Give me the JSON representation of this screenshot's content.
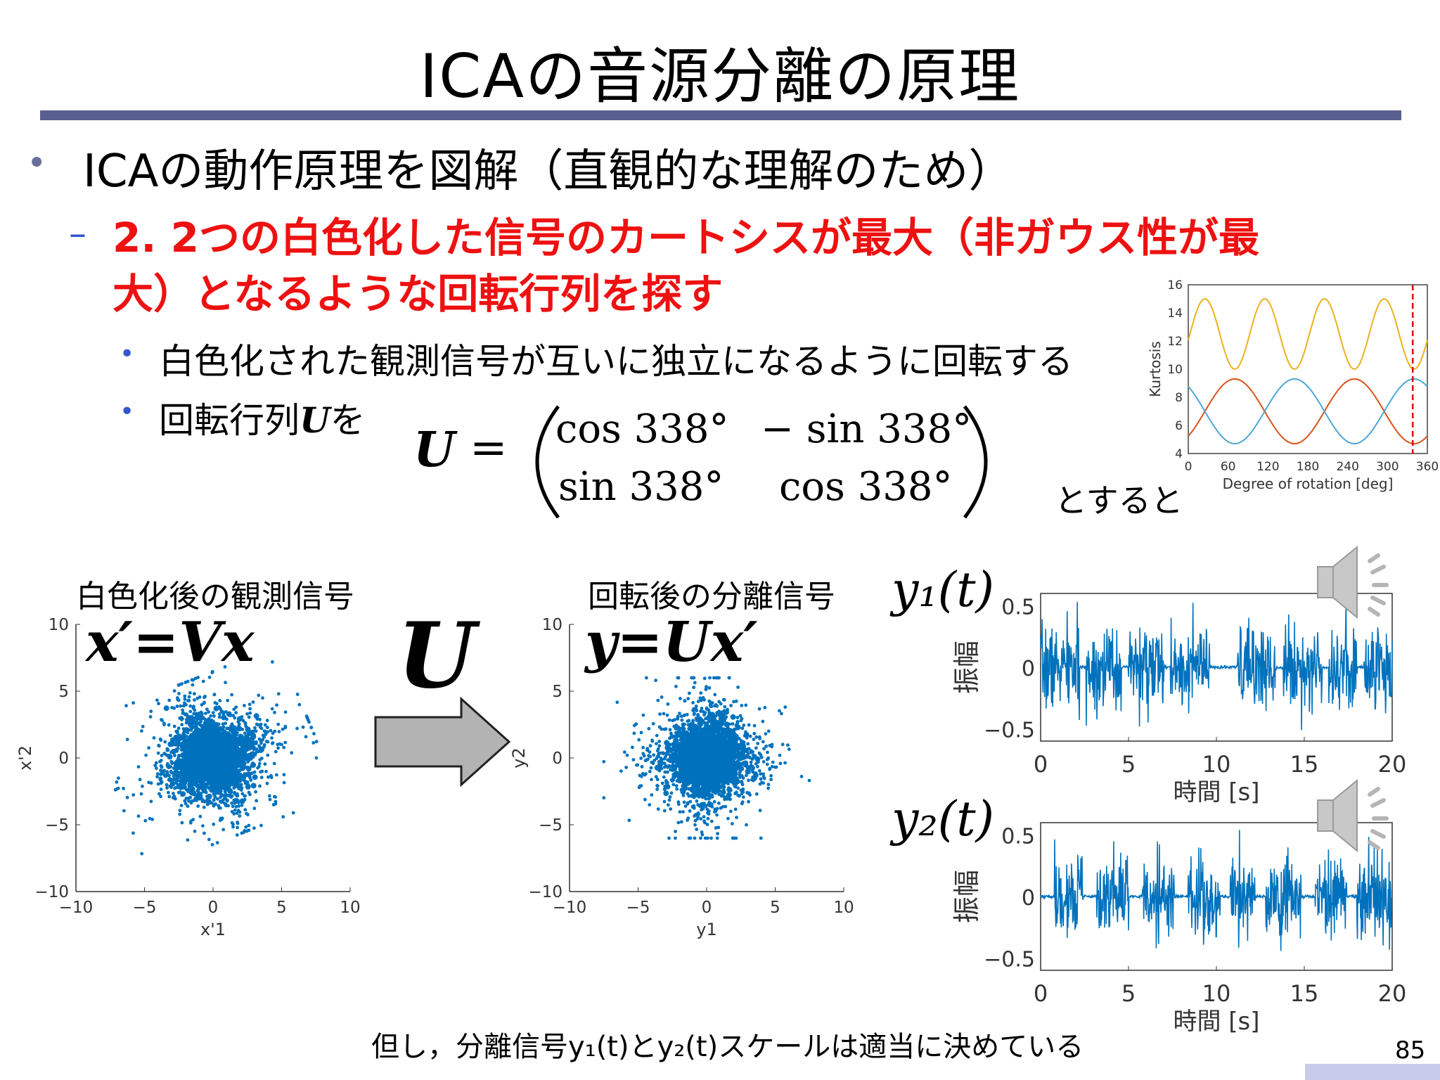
{
  "slide": {
    "title": "ICAの音源分離の原理",
    "bullet1": "ICAの動作原理を図解（直観的な理解のため）",
    "sub_line1": "2. 2つの白色化した信号のカートシスが最大（非ガウス性が最",
    "sub_line2": "大）となるような回転行列を探す",
    "point1": "白色化された観測信号が互いに独立になるように回転する",
    "point2_prefix": "回転行列",
    "point2_var": "U",
    "point2_suffix": "を",
    "matrix": {
      "lhs": "U",
      "eq": "=",
      "a11": "cos 338°",
      "a12": "− sin 338°",
      "a21": "sin 338°",
      "a22": "cos 338°"
    },
    "then_text": "とすると",
    "label_whitened": "白色化後の観測信号",
    "formula_whitened": "x′=Vx",
    "arrow_label": "U",
    "label_separated": "回転後の分離信号",
    "formula_separated": "y=Ux′",
    "y1_label": "y₁(t)",
    "y2_label": "y₂(t)",
    "note": "但し，分離信号y₁(t)とy₂(t)スケールは適当に決めている",
    "page_number": "85"
  },
  "colors": {
    "accent_bar": "#5a5f91",
    "highlight_red": "#ee1111",
    "signal_blue": "#0072bd",
    "kurtosis_yellow": "#edb120",
    "kurtosis_orange": "#d95319",
    "kurtosis_blue": "#4da6d6"
  },
  "icons": [
    "speaker-icon"
  ],
  "chart_data": [
    {
      "type": "line",
      "id": "kurtosis",
      "xlabel": "Degree of rotation [deg]",
      "ylabel": "Kurtosis",
      "xlim": [
        0,
        360
      ],
      "ylim": [
        4,
        16
      ],
      "xticks": [
        0,
        60,
        120,
        180,
        240,
        300,
        360
      ],
      "yticks": [
        4,
        6,
        8,
        10,
        12,
        14,
        16
      ],
      "marker_x": 338,
      "series": [
        {
          "color": "#edb120",
          "period": 90,
          "mid": 12.5,
          "amp": 2.5,
          "phase_deg": 25
        },
        {
          "color": "#d95319",
          "period": 180,
          "mid": 7.0,
          "amp": 2.3,
          "phase_deg": 70
        },
        {
          "color": "#4da6d6",
          "period": 180,
          "mid": 7.0,
          "amp": 2.3,
          "phase_deg": -20
        }
      ]
    },
    {
      "type": "scatter",
      "id": "whitened",
      "xlabel": "x'1",
      "ylabel": "x'2",
      "xlim": [
        -10,
        10
      ],
      "ylim": [
        -10,
        10
      ],
      "xticks": [
        -10,
        -5,
        0,
        5,
        10
      ],
      "yticks": [
        -10,
        -5,
        0,
        5,
        10
      ],
      "rotation_deg": 22
    },
    {
      "type": "scatter",
      "id": "separated",
      "xlabel": "y1",
      "ylabel": "y2",
      "xlim": [
        -10,
        10
      ],
      "ylim": [
        -10,
        10
      ],
      "xticks": [
        -10,
        -5,
        0,
        5,
        10
      ],
      "yticks": [
        -10,
        -5,
        0,
        5,
        10
      ],
      "rotation_deg": 0
    },
    {
      "type": "line",
      "id": "y1_wave",
      "xlabel": "時間 [s]",
      "ylabel": "振幅",
      "xlim": [
        0,
        20
      ],
      "ylim": [
        -0.6,
        0.6
      ],
      "xticks": [
        0,
        5,
        10,
        15,
        20
      ],
      "yticks": [
        -0.5,
        0,
        0.5
      ]
    },
    {
      "type": "line",
      "id": "y2_wave",
      "xlabel": "時間 [s]",
      "ylabel": "振幅",
      "xlim": [
        0,
        20
      ],
      "ylim": [
        -0.6,
        0.6
      ],
      "xticks": [
        0,
        5,
        10,
        15,
        20
      ],
      "yticks": [
        -0.5,
        0,
        0.5
      ]
    }
  ]
}
